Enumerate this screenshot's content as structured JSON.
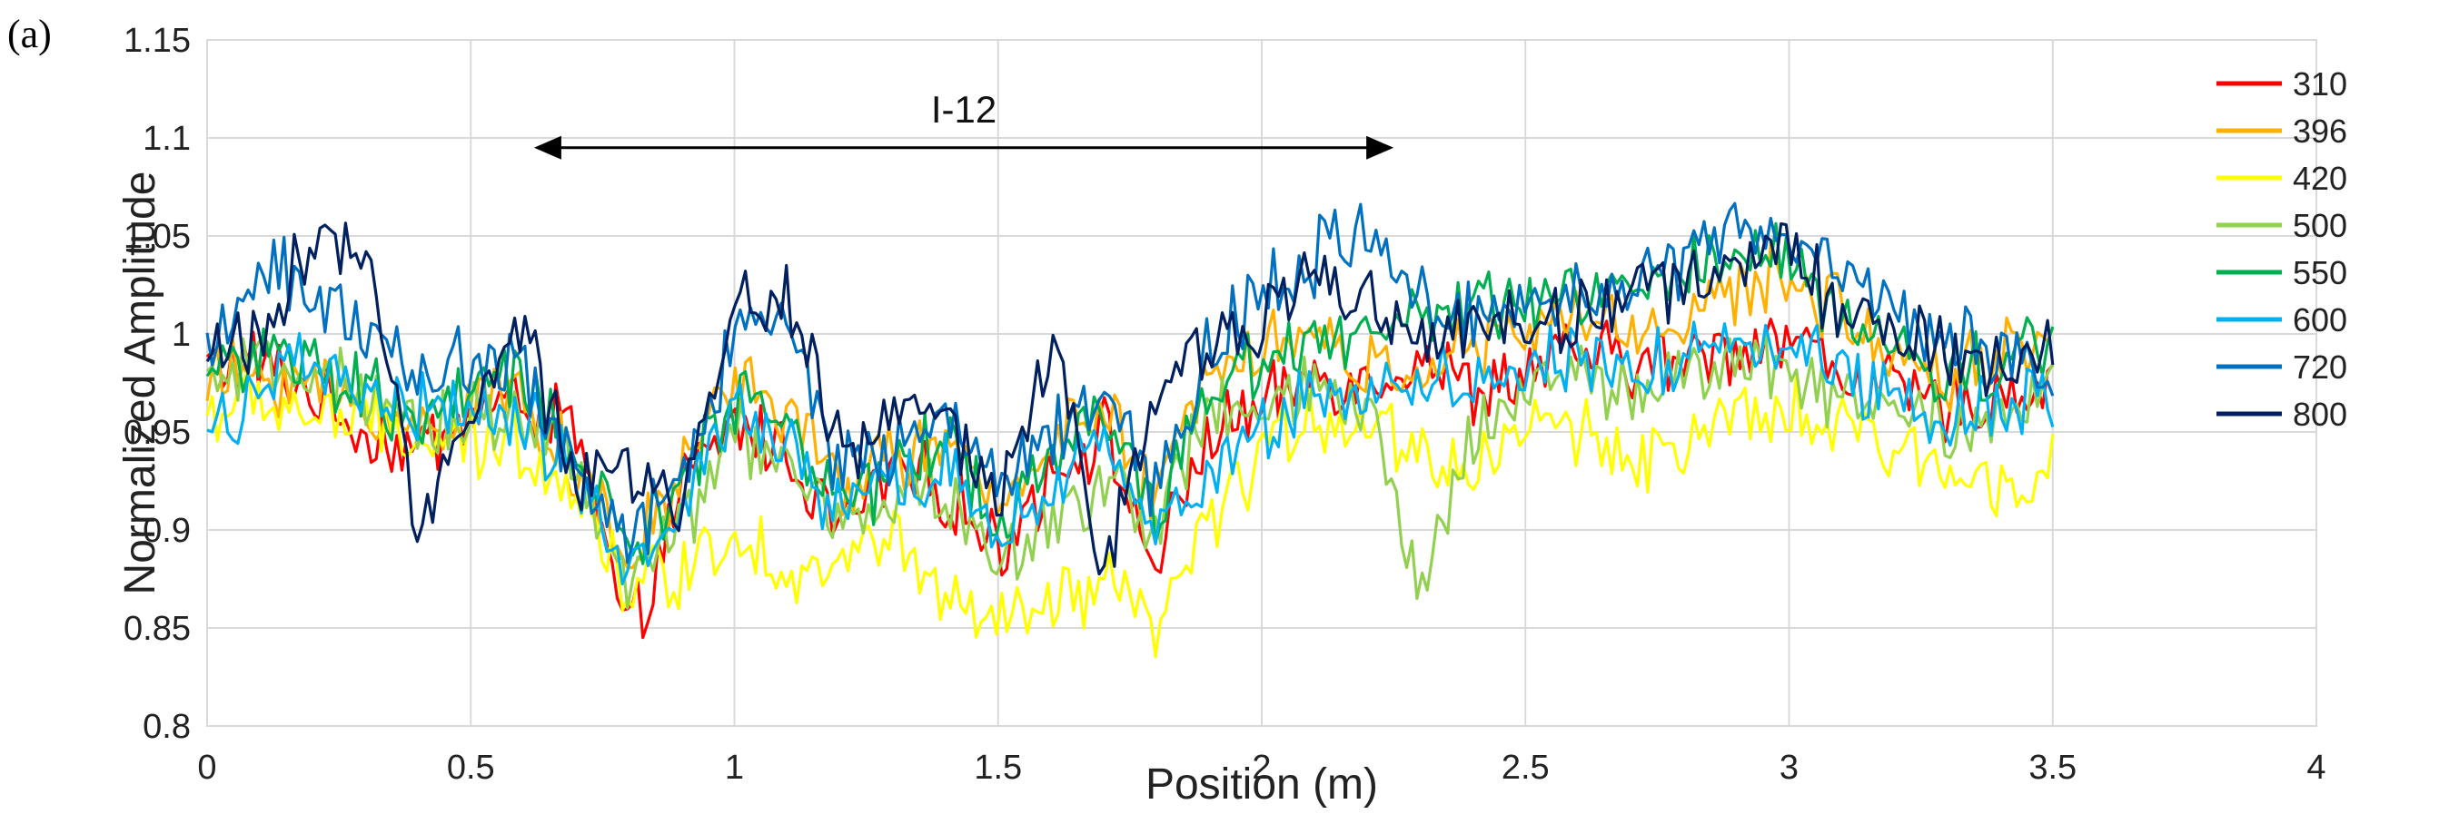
{
  "panel_label": "(a)",
  "chart_data": {
    "type": "line",
    "title": "",
    "xlabel": "Position (m)",
    "ylabel": "Normalized Amplitude",
    "xlim": [
      0,
      4
    ],
    "ylim": [
      0.8,
      1.15
    ],
    "xticks": [
      0,
      0.5,
      1,
      1.5,
      2,
      2.5,
      3,
      3.5,
      4
    ],
    "xtick_labels": [
      "0",
      "0.5",
      "1",
      "1.5",
      "2",
      "2.5",
      "3",
      "3.5",
      "4"
    ],
    "yticks": [
      0.8,
      0.85,
      0.9,
      0.95,
      1,
      1.05,
      1.1,
      1.15
    ],
    "ytick_labels": [
      "0.8",
      "0.85",
      "0.9",
      "0.95",
      "1",
      "1.05",
      "1.1",
      "1.15"
    ],
    "grid": true,
    "legend_position": "right",
    "annotation": {
      "text": "I-12",
      "arrow_from": [
        0.62,
        1.095
      ],
      "arrow_to": [
        2.25,
        1.095
      ],
      "style": "double-headed"
    },
    "x": [
      0,
      0.1,
      0.2,
      0.3,
      0.4,
      0.5,
      0.6,
      0.7,
      0.8,
      0.9,
      1.0,
      1.1,
      1.2,
      1.3,
      1.4,
      1.5,
      1.6,
      1.7,
      1.8,
      1.9,
      2.0,
      2.1,
      2.2,
      2.3,
      2.4,
      2.5,
      2.6,
      2.7,
      2.8,
      2.9,
      3.0,
      3.1,
      3.2,
      3.3,
      3.4,
      3.5
    ],
    "series": [
      {
        "name": "310",
        "color": "#ff0000",
        "values": [
          0.985,
          0.985,
          0.97,
          0.95,
          0.94,
          0.96,
          0.965,
          0.95,
          0.84,
          0.92,
          0.955,
          0.94,
          0.9,
          0.93,
          0.92,
          0.89,
          0.93,
          0.95,
          0.88,
          0.95,
          0.96,
          0.98,
          0.975,
          0.99,
          0.97,
          0.98,
          0.99,
          0.985,
          0.985,
          0.995,
          1.0,
          0.98,
          0.97,
          0.96,
          0.97,
          0.975
        ]
      },
      {
        "name": "396",
        "color": "#ffb000",
        "values": [
          0.975,
          0.98,
          0.975,
          0.96,
          0.95,
          0.965,
          0.97,
          0.93,
          0.88,
          0.93,
          0.98,
          0.96,
          0.92,
          0.94,
          0.94,
          0.91,
          0.95,
          0.96,
          0.91,
          0.99,
          0.995,
          1.0,
          0.98,
          0.985,
          0.99,
          1.0,
          1.01,
          1.0,
          1.01,
          1.02,
          1.03,
          1.01,
          0.99,
          0.98,
          0.99,
          1.0
        ]
      },
      {
        "name": "420",
        "color": "#ffff00",
        "values": [
          0.96,
          0.965,
          0.96,
          0.955,
          0.945,
          0.94,
          0.945,
          0.92,
          0.87,
          0.88,
          0.9,
          0.88,
          0.88,
          0.9,
          0.86,
          0.85,
          0.86,
          0.87,
          0.85,
          0.9,
          0.94,
          0.96,
          0.955,
          0.94,
          0.93,
          0.955,
          0.95,
          0.94,
          0.94,
          0.955,
          0.96,
          0.95,
          0.94,
          0.93,
          0.925,
          0.94
        ]
      },
      {
        "name": "500",
        "color": "#92d050",
        "values": [
          0.975,
          0.98,
          0.985,
          0.96,
          0.95,
          0.96,
          0.96,
          0.93,
          0.87,
          0.9,
          0.95,
          0.93,
          0.9,
          0.92,
          0.92,
          0.88,
          0.9,
          0.93,
          0.9,
          0.96,
          0.96,
          0.97,
          0.96,
          0.87,
          0.95,
          0.975,
          0.98,
          0.97,
          0.98,
          0.985,
          0.98,
          0.97,
          0.965,
          0.955,
          0.96,
          0.97
        ]
      },
      {
        "name": "550",
        "color": "#00b050",
        "values": [
          0.985,
          0.99,
          0.98,
          0.97,
          0.955,
          0.97,
          0.975,
          0.94,
          0.89,
          0.92,
          0.97,
          0.96,
          0.91,
          0.93,
          0.95,
          0.9,
          0.94,
          0.96,
          0.91,
          0.97,
          0.99,
          1.0,
          1.0,
          1.01,
          1.01,
          1.015,
          1.02,
          1.02,
          1.03,
          1.035,
          1.04,
          1.01,
          0.99,
          0.98,
          0.985,
          0.995
        ]
      },
      {
        "name": "600",
        "color": "#00b0f0",
        "values": [
          0.95,
          0.975,
          0.98,
          0.97,
          0.96,
          0.96,
          0.955,
          0.93,
          0.88,
          0.91,
          0.96,
          0.94,
          0.91,
          0.92,
          0.93,
          0.9,
          0.92,
          0.94,
          0.9,
          0.93,
          0.95,
          0.97,
          0.97,
          0.98,
          0.975,
          0.98,
          0.985,
          0.98,
          0.99,
          0.995,
          1.0,
          0.98,
          0.97,
          0.96,
          0.965,
          0.97
        ]
      },
      {
        "name": "720",
        "color": "#0070c0",
        "values": [
          0.98,
          1.04,
          1.02,
          1.0,
          0.98,
          0.99,
          0.98,
          0.93,
          0.89,
          0.93,
          1.0,
          1.01,
          0.93,
          0.94,
          0.96,
          0.92,
          0.95,
          0.98,
          0.92,
          0.99,
          1.02,
          1.04,
          1.05,
          1.02,
          1.01,
          1.02,
          1.02,
          1.03,
          1.04,
          1.05,
          1.055,
          1.03,
          1.01,
          1.0,
          0.99,
          0.98
        ]
      },
      {
        "name": "800",
        "color": "#002060",
        "values": [
          0.99,
          1.0,
          1.045,
          1.04,
          0.9,
          0.97,
          1.0,
          0.92,
          0.935,
          0.91,
          1.015,
          1.02,
          0.94,
          0.96,
          0.96,
          0.91,
          1.0,
          0.88,
          0.97,
          1.0,
          1.005,
          1.03,
          1.02,
          1.0,
          1.005,
          1.005,
          1.01,
          1.02,
          1.02,
          1.04,
          1.045,
          1.01,
          1.0,
          0.99,
          0.985,
          0.99
        ]
      }
    ]
  }
}
